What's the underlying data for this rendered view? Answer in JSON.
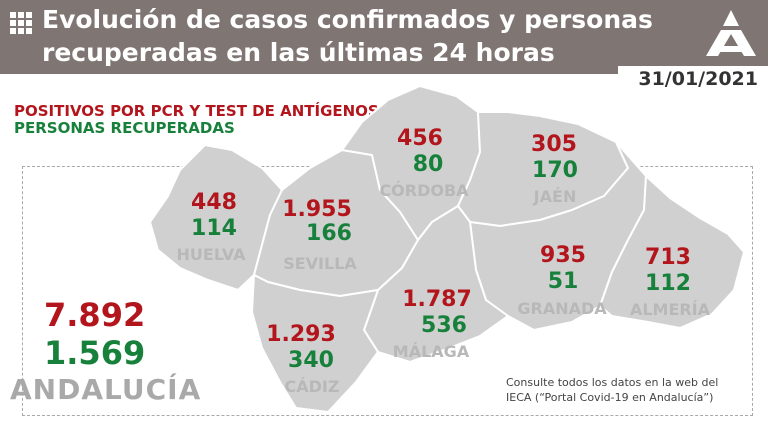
{
  "header": {
    "title_line1": "Evolución de casos confirmados y personas",
    "title_line2": "recuperadas en las últimas 24 horas",
    "date": "31/01/2021",
    "logo_icon": "junta-andalucia-logo-icon",
    "menu_icon": "grid-icon"
  },
  "legend": {
    "pcr": "POSITIVOS POR PCR Y TEST DE ANTÍGENOS",
    "recovered": "PERSONAS RECUPERADAS"
  },
  "colors": {
    "positive": "#b3151c",
    "recovered": "#17813b",
    "map_fill": "#d0d0d0",
    "header_bg": "#7f7674"
  },
  "provinces": {
    "huelva": {
      "name": "HUELVA",
      "positives": "448",
      "recovered": "114"
    },
    "sevilla": {
      "name": "SEVILLA",
      "positives": "1.955",
      "recovered": "166"
    },
    "cordoba": {
      "name": "CÓRDOBA",
      "positives": "456",
      "recovered": "80"
    },
    "jaen": {
      "name": "JAÉN",
      "positives": "305",
      "recovered": "170"
    },
    "granada": {
      "name": "GRANADA",
      "positives": "935",
      "recovered": "51"
    },
    "almeria": {
      "name": "ALMERÍA",
      "positives": "713",
      "recovered": "112"
    },
    "malaga": {
      "name": "MÁLAGA",
      "positives": "1.787",
      "recovered": "536"
    },
    "cadiz": {
      "name": "CÁDIZ",
      "positives": "1.293",
      "recovered": "340"
    }
  },
  "total": {
    "name": "ANDALUCÍA",
    "positives": "7.892",
    "recovered": "1.569"
  },
  "note": {
    "line1": "Consulte todos los datos en la web del",
    "line2": "IECA (“Portal Covid-19 en Andalucía”)"
  }
}
